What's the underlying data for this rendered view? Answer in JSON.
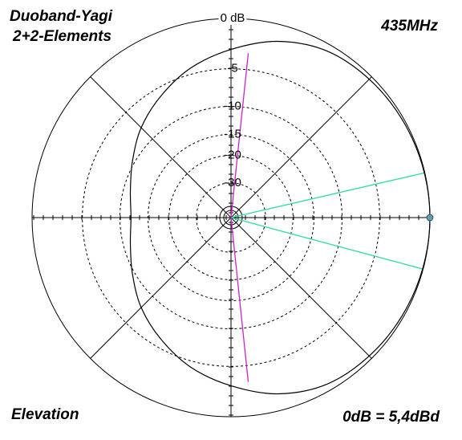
{
  "chart_data": {
    "type": "polar",
    "title": "Duoband-Yagi",
    "subtitle": "2+2-Elements",
    "frequency_label": "435MHz",
    "view_label": "Elevation",
    "reference_label": "0dB = 5,4dBd",
    "scale": "arrl-log",
    "rticks": [
      {
        "value": 0,
        "label": "0 dB"
      },
      -5,
      -10,
      -15,
      -20,
      -30
    ],
    "theta": [
      0,
      15,
      30,
      45,
      60,
      75,
      90,
      105,
      120,
      135,
      150,
      165,
      180,
      195,
      210,
      225,
      240,
      255,
      270,
      285,
      300,
      315,
      330,
      345
    ],
    "series": [
      {
        "color": "#000000",
        "values": [
          0,
          -0.05,
          -0.15,
          -0.3,
          -0.6,
          -1.5,
          -2.9,
          -4.3,
          -6.0,
          -7.7,
          -9.6,
          -11.1,
          -11.8,
          -11.1,
          -9.6,
          -7.7,
          -6.0,
          -4.3,
          -2.9,
          -1.5,
          -0.6,
          -0.3,
          -0.15,
          -0.05
        ]
      }
    ],
    "markers": [
      {
        "color": "#33dd99",
        "angles": [
          13,
          -15
        ],
        "db": 0
      },
      {
        "color": "#cc22cc",
        "angles": [
          84,
          -84
        ],
        "db": -3.2
      }
    ],
    "peak": {
      "angle": 0,
      "db": 0,
      "color": "#5fa0a8"
    }
  }
}
